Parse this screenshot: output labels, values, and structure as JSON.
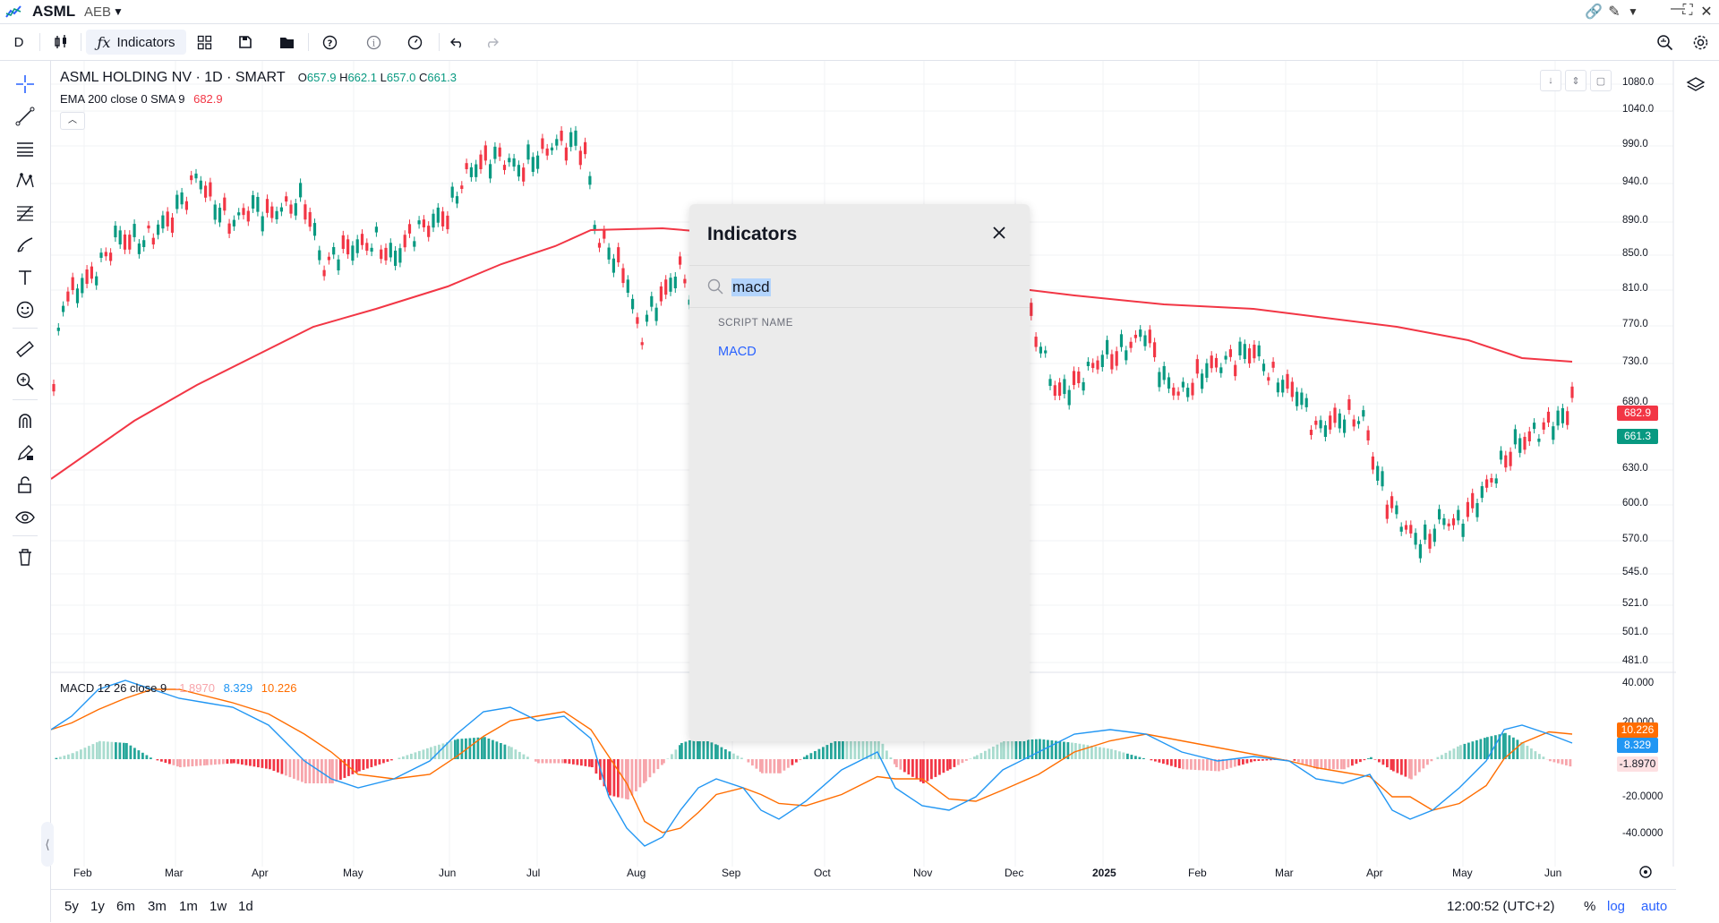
{
  "window": {
    "ticker": "ASML",
    "exchange": "AEB"
  },
  "toolbar": {
    "interval": "D",
    "indicators_label": "Indicators"
  },
  "legend": {
    "title": "ASML HOLDING NV · 1D · SMART",
    "o_label": "O",
    "o_value": "657.9",
    "h_label": "H",
    "h_value": "662.1",
    "l_label": "L",
    "l_value": "657.0",
    "c_label": "C",
    "c_value": "661.3",
    "ema_label": "EMA 200 close 0 SMA 9",
    "ema_value": "682.9",
    "macd_label": "MACD 12 26 close 9",
    "macd_hist": "-1.8970",
    "macd_line": "8.329",
    "macd_signal": "10.226"
  },
  "price_axis": [
    "1080.0",
    "1040.0",
    "990.0",
    "940.0",
    "890.0",
    "850.0",
    "810.0",
    "770.0",
    "730.0",
    "680.0",
    "630.0",
    "600.0",
    "570.0",
    "545.0",
    "521.0",
    "501.0",
    "481.0"
  ],
  "price_tags": {
    "ema": "682.9",
    "close": "661.3"
  },
  "macd_axis": [
    "40.000",
    "20.000",
    "-20.0000",
    "-40.0000"
  ],
  "macd_tags": {
    "signal": "10.226",
    "macd": "8.329",
    "hist": "-1.8970"
  },
  "time_axis": [
    "Feb",
    "Mar",
    "Apr",
    "May",
    "Jun",
    "Jul",
    "Aug",
    "Sep",
    "Oct",
    "Nov",
    "Dec",
    "2025",
    "Feb",
    "Mar",
    "Apr",
    "May",
    "Jun"
  ],
  "bottom": {
    "ranges": [
      "5y",
      "1y",
      "6m",
      "3m",
      "1m",
      "1w",
      "1d"
    ],
    "clock": "12:00:52 (UTC+2)",
    "percent": "%",
    "log": "log",
    "auto": "auto"
  },
  "dialog": {
    "title": "Indicators",
    "search_value": "macd",
    "section": "SCRIPT NAME",
    "result": "MACD"
  },
  "colors": {
    "up": "#089981",
    "down": "#f23645",
    "ema": "#f23645",
    "macd": "#2196f3",
    "signal": "#ff6d00",
    "accent": "#2962ff"
  }
}
